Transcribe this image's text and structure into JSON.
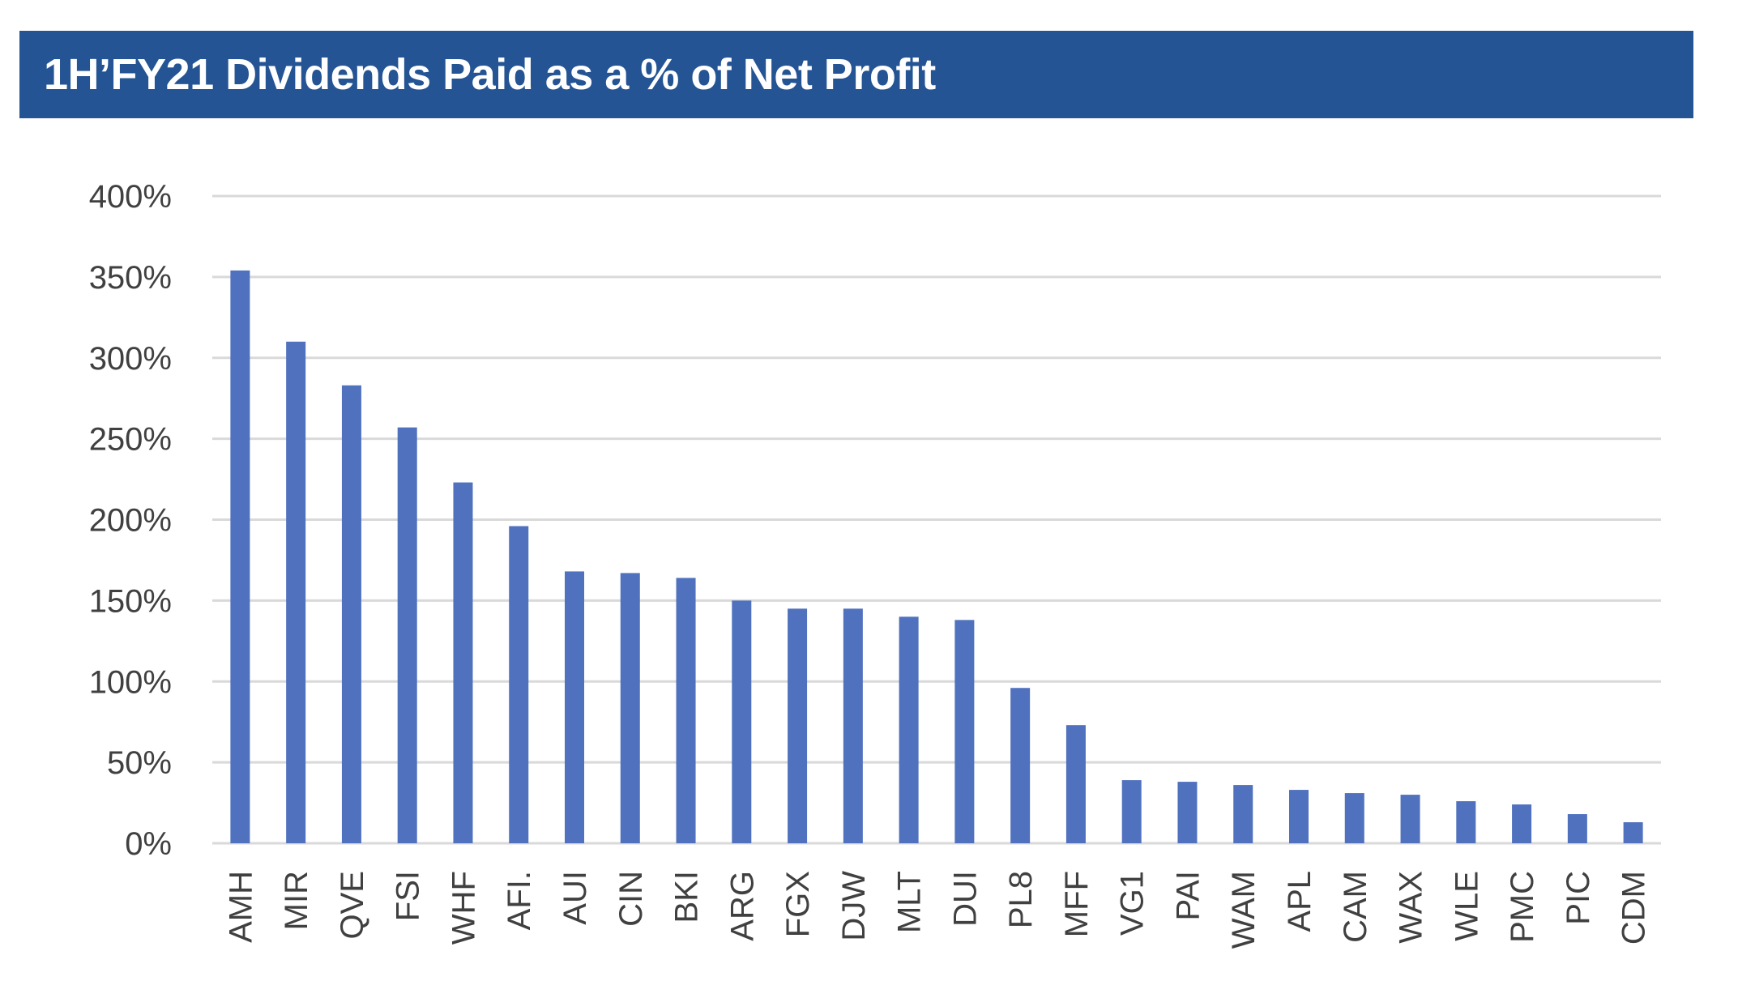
{
  "chart_data": {
    "type": "bar",
    "title": "1H’FY21 Dividends Paid as a % of Net Profit",
    "xlabel": "",
    "ylabel": "",
    "categories": [
      "AMH",
      "MIR",
      "QVE",
      "FSI",
      "WHF",
      "AFI.",
      "AUI",
      "CIN",
      "BKI",
      "ARG",
      "FGX",
      "DJW",
      "MLT",
      "DUI",
      "PL8",
      "MFF",
      "VG1",
      "PAI",
      "WAM",
      "APL",
      "CAM",
      "WAX",
      "WLE",
      "PMC",
      "PIC",
      "CDM"
    ],
    "values": [
      354,
      310,
      283,
      257,
      223,
      196,
      168,
      167,
      164,
      150,
      145,
      145,
      140,
      138,
      96,
      73,
      39,
      38,
      36,
      33,
      31,
      30,
      26,
      24,
      18,
      13
    ],
    "ylim": [
      0,
      400
    ],
    "y_ticks": [
      {
        "value": 0,
        "label": "0%"
      },
      {
        "value": 50,
        "label": "50%"
      },
      {
        "value": 100,
        "label": "100%"
      },
      {
        "value": 150,
        "label": "150%"
      },
      {
        "value": 200,
        "label": "200%"
      },
      {
        "value": 250,
        "label": "250%"
      },
      {
        "value": 300,
        "label": "300%"
      },
      {
        "value": 350,
        "label": "350%"
      },
      {
        "value": 400,
        "label": "400%"
      }
    ],
    "grid": true,
    "legend": "none",
    "colors": {
      "bar": "#4F71BE",
      "grid": "#D9D9D9",
      "axis_text": "#404040",
      "banner": "#245493",
      "banner_text": "#FFFFFF"
    }
  }
}
